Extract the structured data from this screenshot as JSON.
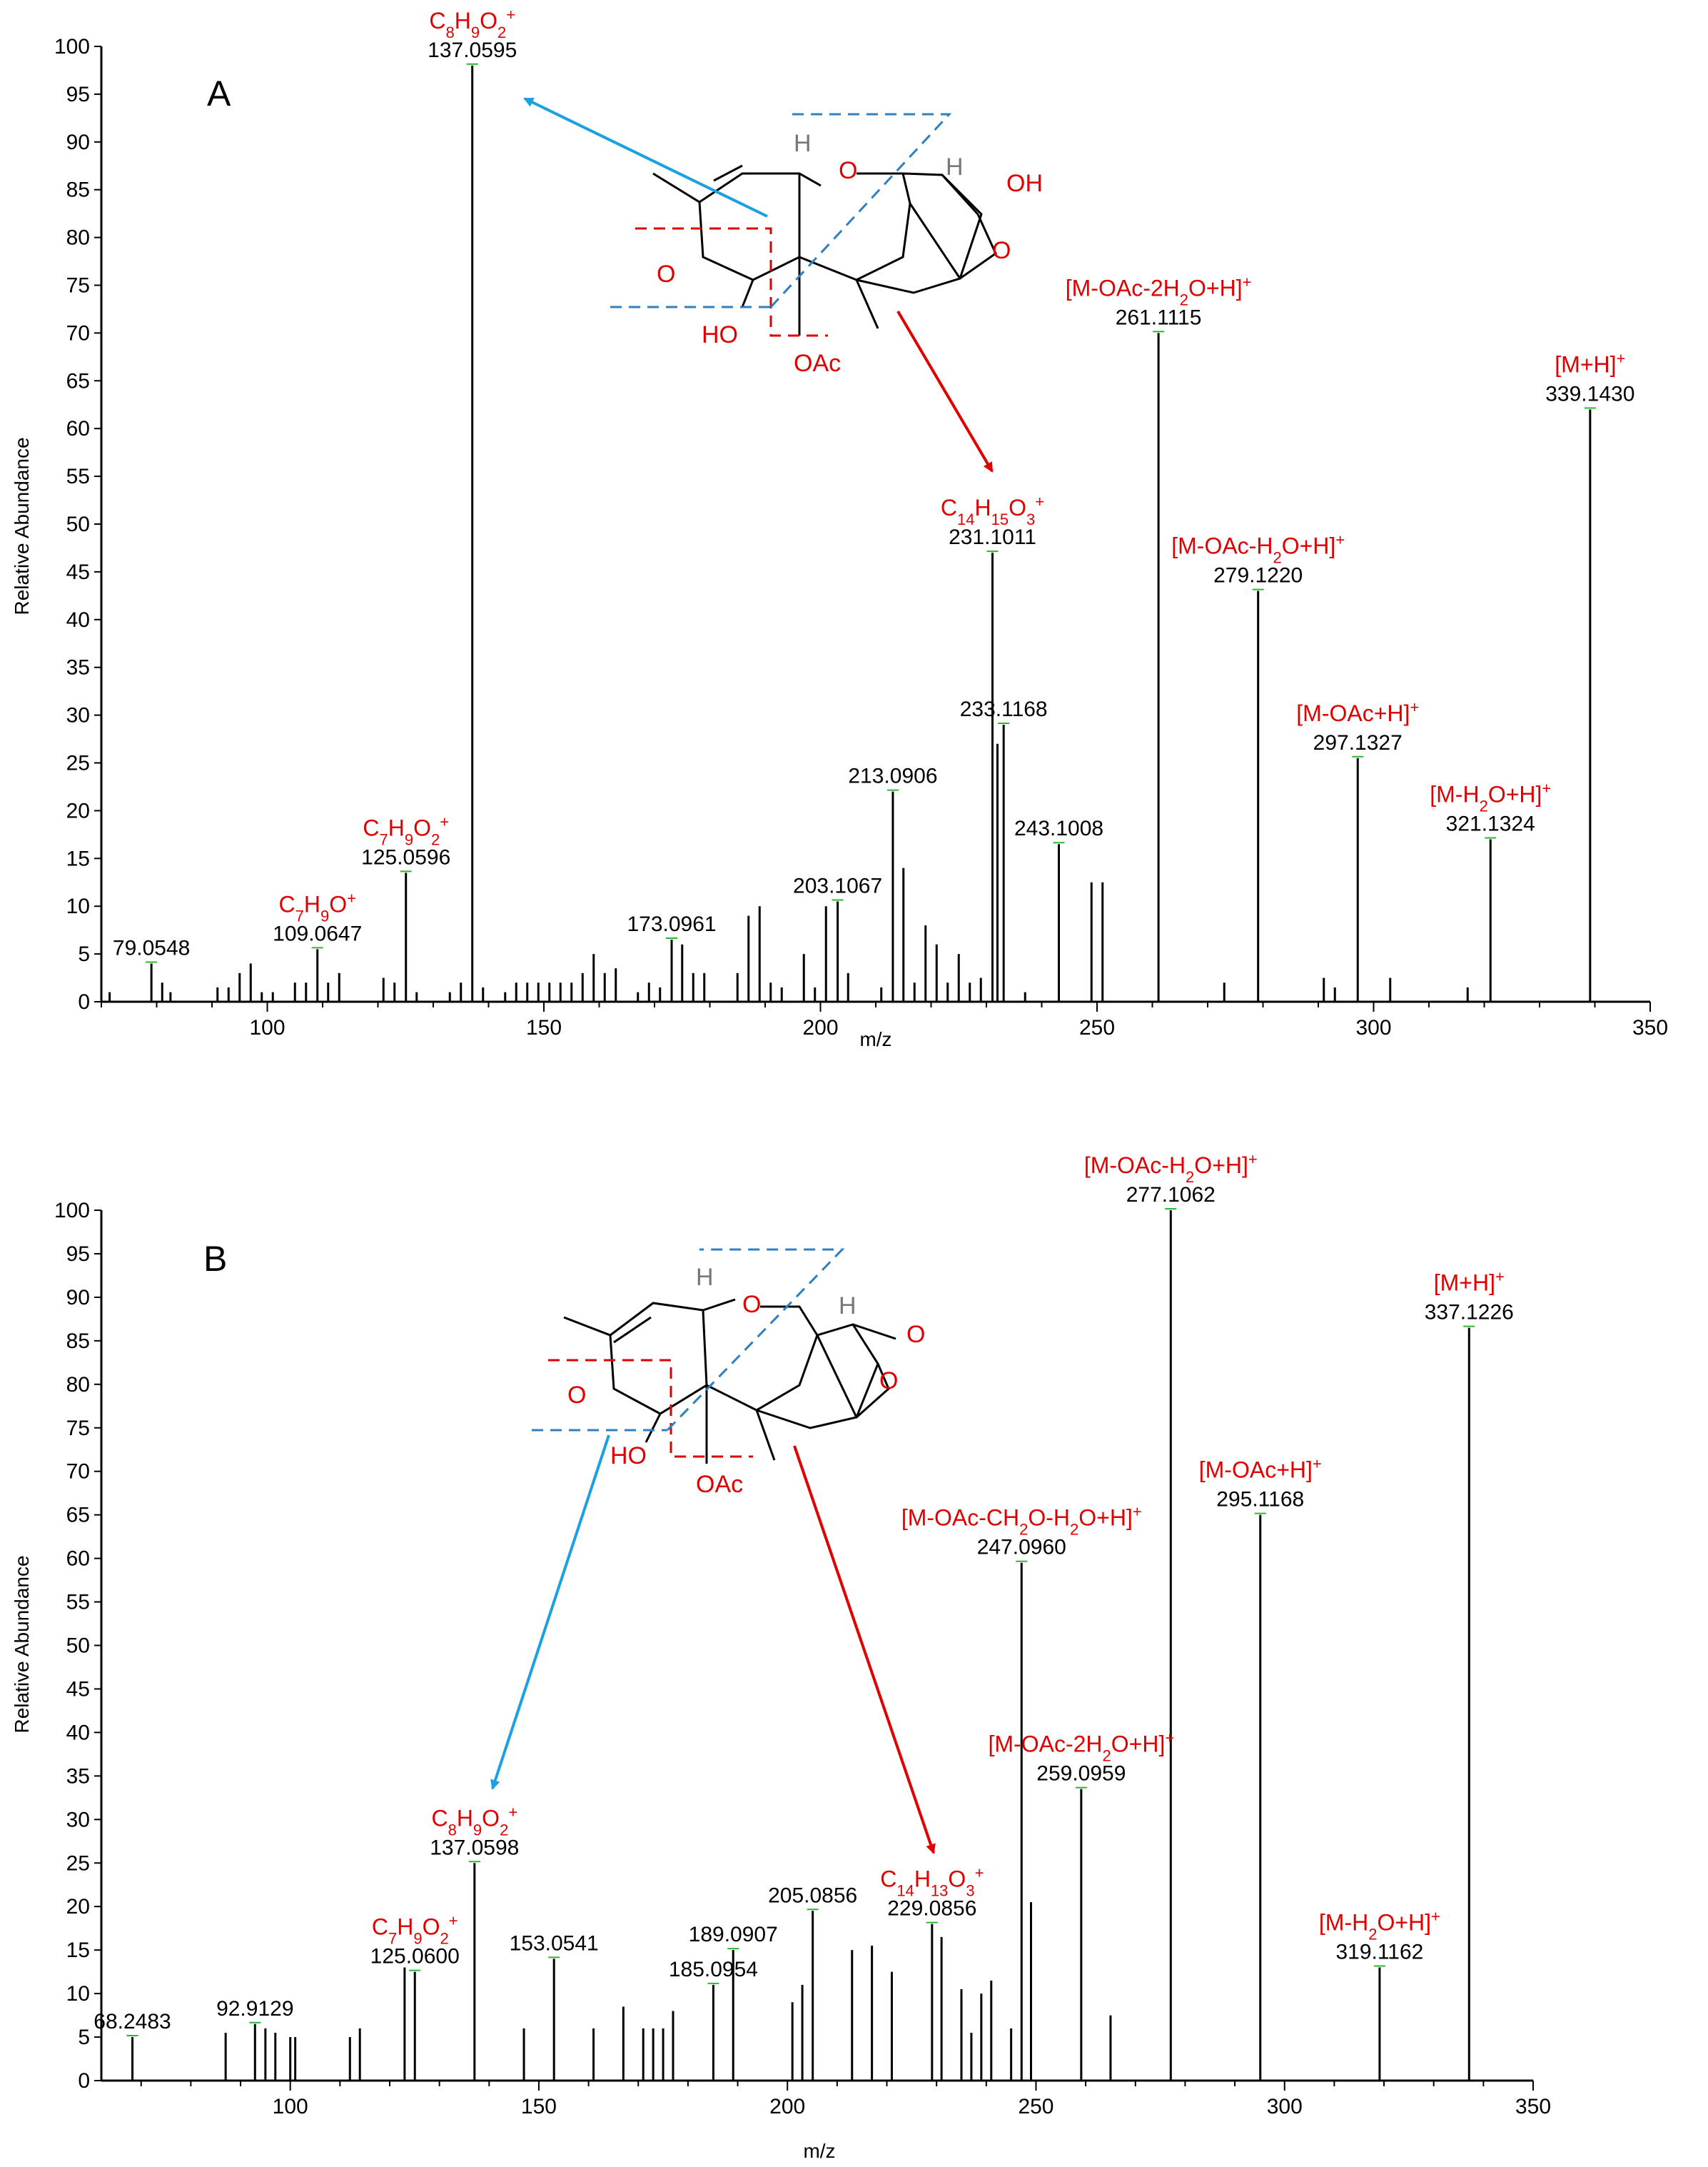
{
  "chart_data": [
    {
      "type": "bar",
      "panel_label": "A",
      "xlabel": "m/z",
      "ylabel": "Relative Abundance",
      "xlim": [
        70,
        350
      ],
      "ylim": [
        0,
        100
      ],
      "xticks": [
        "100",
        "150",
        "200",
        "250",
        "300",
        "350"
      ],
      "yticks": [
        "0",
        "5",
        "10",
        "15",
        "20",
        "25",
        "30",
        "35",
        "40",
        "45",
        "50",
        "55",
        "60",
        "65",
        "70",
        "75",
        "80",
        "85",
        "90",
        "95",
        "100"
      ],
      "peaks": [
        {
          "mz": 71.5,
          "ab": 1
        },
        {
          "mz": 79.05,
          "ab": 4
        },
        {
          "mz": 81,
          "ab": 2
        },
        {
          "mz": 82.5,
          "ab": 1
        },
        {
          "mz": 91,
          "ab": 1.5
        },
        {
          "mz": 93,
          "ab": 1.5
        },
        {
          "mz": 95,
          "ab": 3
        },
        {
          "mz": 97,
          "ab": 4
        },
        {
          "mz": 99,
          "ab": 1
        },
        {
          "mz": 101,
          "ab": 1
        },
        {
          "mz": 105,
          "ab": 2
        },
        {
          "mz": 107,
          "ab": 2
        },
        {
          "mz": 109.06,
          "ab": 5.5
        },
        {
          "mz": 111,
          "ab": 2
        },
        {
          "mz": 113,
          "ab": 3
        },
        {
          "mz": 121,
          "ab": 2.5
        },
        {
          "mz": 123,
          "ab": 2
        },
        {
          "mz": 125.06,
          "ab": 13.5
        },
        {
          "mz": 127,
          "ab": 1
        },
        {
          "mz": 133,
          "ab": 1
        },
        {
          "mz": 135,
          "ab": 2
        },
        {
          "mz": 137.06,
          "ab": 98
        },
        {
          "mz": 139,
          "ab": 1.5
        },
        {
          "mz": 143,
          "ab": 1
        },
        {
          "mz": 145,
          "ab": 2
        },
        {
          "mz": 147,
          "ab": 2
        },
        {
          "mz": 149,
          "ab": 2
        },
        {
          "mz": 151,
          "ab": 2
        },
        {
          "mz": 153,
          "ab": 2
        },
        {
          "mz": 155,
          "ab": 2
        },
        {
          "mz": 157,
          "ab": 3
        },
        {
          "mz": 159,
          "ab": 5
        },
        {
          "mz": 161,
          "ab": 3
        },
        {
          "mz": 163,
          "ab": 3.5
        },
        {
          "mz": 167,
          "ab": 1
        },
        {
          "mz": 169,
          "ab": 2
        },
        {
          "mz": 171,
          "ab": 1.5
        },
        {
          "mz": 173.1,
          "ab": 6.5
        },
        {
          "mz": 175,
          "ab": 6
        },
        {
          "mz": 177,
          "ab": 3
        },
        {
          "mz": 179,
          "ab": 3
        },
        {
          "mz": 185,
          "ab": 3
        },
        {
          "mz": 187,
          "ab": 9
        },
        {
          "mz": 189,
          "ab": 10
        },
        {
          "mz": 191,
          "ab": 2
        },
        {
          "mz": 193,
          "ab": 1.5
        },
        {
          "mz": 197,
          "ab": 5
        },
        {
          "mz": 199,
          "ab": 1.5
        },
        {
          "mz": 201,
          "ab": 10
        },
        {
          "mz": 203.11,
          "ab": 10.5
        },
        {
          "mz": 205,
          "ab": 3
        },
        {
          "mz": 211,
          "ab": 1.5
        },
        {
          "mz": 213.09,
          "ab": 22
        },
        {
          "mz": 215,
          "ab": 14
        },
        {
          "mz": 217,
          "ab": 2
        },
        {
          "mz": 219,
          "ab": 8
        },
        {
          "mz": 221,
          "ab": 6
        },
        {
          "mz": 223,
          "ab": 2
        },
        {
          "mz": 225,
          "ab": 5
        },
        {
          "mz": 227,
          "ab": 2
        },
        {
          "mz": 229,
          "ab": 2.5
        },
        {
          "mz": 231.1,
          "ab": 47
        },
        {
          "mz": 232,
          "ab": 27
        },
        {
          "mz": 233.12,
          "ab": 29
        },
        {
          "mz": 237,
          "ab": 1
        },
        {
          "mz": 243.1,
          "ab": 16.5
        },
        {
          "mz": 249,
          "ab": 12.5
        },
        {
          "mz": 251,
          "ab": 12.5
        },
        {
          "mz": 261.11,
          "ab": 70
        },
        {
          "mz": 273,
          "ab": 2
        },
        {
          "mz": 279.12,
          "ab": 43
        },
        {
          "mz": 291,
          "ab": 2.5
        },
        {
          "mz": 293,
          "ab": 1.5
        },
        {
          "mz": 297.13,
          "ab": 25.5
        },
        {
          "mz": 303,
          "ab": 2.5
        },
        {
          "mz": 317,
          "ab": 1.5
        },
        {
          "mz": 321.13,
          "ab": 17
        },
        {
          "mz": 339.14,
          "ab": 62
        }
      ],
      "labels": [
        {
          "mz": 79.05,
          "ab": 4,
          "text": "79.0548"
        },
        {
          "mz": 109.06,
          "ab": 5.5,
          "text": "109.0647",
          "formula": "C7H9O+"
        },
        {
          "mz": 125.06,
          "ab": 13.5,
          "text": "125.0596",
          "formula": "C7H9O2+"
        },
        {
          "mz": 137.06,
          "ab": 98,
          "text": "137.0595",
          "formula": "C8H9O2+"
        },
        {
          "mz": 173.1,
          "ab": 6.5,
          "text": "173.0961"
        },
        {
          "mz": 203.11,
          "ab": 10.5,
          "text": "203.1067"
        },
        {
          "mz": 213.09,
          "ab": 22,
          "text": "213.0906"
        },
        {
          "mz": 231.1,
          "ab": 47,
          "text": "231.1011",
          "formula": "C14H15O3+"
        },
        {
          "mz": 233.12,
          "ab": 29,
          "text": "233.1168"
        },
        {
          "mz": 243.1,
          "ab": 16.5,
          "text": "243.1008"
        },
        {
          "mz": 261.11,
          "ab": 70,
          "text": "261.1115",
          "formula": "[M-OAc-2H2O+H]+"
        },
        {
          "mz": 279.12,
          "ab": 43,
          "text": "279.1220",
          "formula": "[M-OAc-H2O+H]+"
        },
        {
          "mz": 297.13,
          "ab": 25.5,
          "text": "297.1327",
          "formula": "[M-OAc+H]+"
        },
        {
          "mz": 321.13,
          "ab": 17,
          "text": "321.1324",
          "formula": "[M-H2O+H]+"
        },
        {
          "mz": 339.14,
          "ab": 62,
          "text": "339.1430",
          "formula": "[M+H]+"
        }
      ],
      "structure_labels": [
        "H",
        "O",
        "H",
        "OH",
        "O",
        "O",
        "HO",
        "OAc"
      ]
    },
    {
      "type": "bar",
      "panel_label": "B",
      "xlabel": "m/z",
      "ylabel": "Relative Abundance",
      "xlim": [
        62,
        350
      ],
      "ylim": [
        0,
        100
      ],
      "xticks": [
        "100",
        "150",
        "200",
        "250",
        "300",
        "350"
      ],
      "yticks": [
        "0",
        "5",
        "10",
        "15",
        "20",
        "25",
        "30",
        "35",
        "40",
        "45",
        "50",
        "55",
        "60",
        "65",
        "70",
        "75",
        "80",
        "85",
        "90",
        "95",
        "100"
      ],
      "peaks": [
        {
          "mz": 68.25,
          "ab": 5
        },
        {
          "mz": 87,
          "ab": 5.5
        },
        {
          "mz": 92.91,
          "ab": 6.5
        },
        {
          "mz": 95,
          "ab": 6
        },
        {
          "mz": 97,
          "ab": 5.5
        },
        {
          "mz": 100,
          "ab": 5
        },
        {
          "mz": 101,
          "ab": 5
        },
        {
          "mz": 112,
          "ab": 5
        },
        {
          "mz": 114,
          "ab": 6
        },
        {
          "mz": 123,
          "ab": 13
        },
        {
          "mz": 125.06,
          "ab": 12.5
        },
        {
          "mz": 137.06,
          "ab": 25
        },
        {
          "mz": 147,
          "ab": 6
        },
        {
          "mz": 153.05,
          "ab": 14
        },
        {
          "mz": 161,
          "ab": 6
        },
        {
          "mz": 167,
          "ab": 8.5
        },
        {
          "mz": 171,
          "ab": 6
        },
        {
          "mz": 173,
          "ab": 6
        },
        {
          "mz": 175,
          "ab": 6
        },
        {
          "mz": 177,
          "ab": 8
        },
        {
          "mz": 185.1,
          "ab": 11
        },
        {
          "mz": 189.09,
          "ab": 15
        },
        {
          "mz": 201,
          "ab": 9
        },
        {
          "mz": 203,
          "ab": 11
        },
        {
          "mz": 205.09,
          "ab": 19.5
        },
        {
          "mz": 213,
          "ab": 15
        },
        {
          "mz": 217,
          "ab": 15.5
        },
        {
          "mz": 221,
          "ab": 12.5
        },
        {
          "mz": 229.09,
          "ab": 18
        },
        {
          "mz": 231,
          "ab": 16.5
        },
        {
          "mz": 235,
          "ab": 10.5
        },
        {
          "mz": 237,
          "ab": 5.5
        },
        {
          "mz": 239,
          "ab": 10
        },
        {
          "mz": 241,
          "ab": 11.5
        },
        {
          "mz": 245,
          "ab": 6
        },
        {
          "mz": 247.1,
          "ab": 59.5
        },
        {
          "mz": 249,
          "ab": 20.5
        },
        {
          "mz": 259.1,
          "ab": 33.5
        },
        {
          "mz": 265,
          "ab": 7.5
        },
        {
          "mz": 277.11,
          "ab": 100
        },
        {
          "mz": 295.12,
          "ab": 65
        },
        {
          "mz": 319.12,
          "ab": 13
        },
        {
          "mz": 337.12,
          "ab": 86.5
        }
      ],
      "labels": [
        {
          "mz": 68.25,
          "ab": 5,
          "text": "68.2483"
        },
        {
          "mz": 92.91,
          "ab": 6.5,
          "text": "92.9129"
        },
        {
          "mz": 125.06,
          "ab": 12.5,
          "text": "125.0600",
          "formula": "C7H9O2+"
        },
        {
          "mz": 137.06,
          "ab": 25,
          "text": "137.0598",
          "formula": "C8H9O2+"
        },
        {
          "mz": 153.05,
          "ab": 14,
          "text": "153.0541"
        },
        {
          "mz": 185.1,
          "ab": 11,
          "text": "185.0954"
        },
        {
          "mz": 189.09,
          "ab": 15,
          "text": "189.0907"
        },
        {
          "mz": 205.09,
          "ab": 19.5,
          "text": "205.0856"
        },
        {
          "mz": 229.09,
          "ab": 18,
          "text": "229.0856",
          "formula": "C14H13O3+"
        },
        {
          "mz": 247.1,
          "ab": 59.5,
          "text": "247.0960",
          "formula": "[M-OAc-CH2O-H2O+H]+"
        },
        {
          "mz": 259.1,
          "ab": 33.5,
          "text": "259.0959",
          "formula": "[M-OAc-2H2O+H]+"
        },
        {
          "mz": 277.11,
          "ab": 100,
          "text": "277.1062",
          "formula": "[M-OAc-H2O+H]+"
        },
        {
          "mz": 295.12,
          "ab": 65,
          "text": "295.1168",
          "formula": "[M-OAc+H]+"
        },
        {
          "mz": 319.12,
          "ab": 13,
          "text": "319.1162",
          "formula": "[M-H2O+H]+"
        },
        {
          "mz": 337.12,
          "ab": 86.5,
          "text": "337.1226",
          "formula": "[M+H]+"
        }
      ],
      "structure_labels": [
        "H",
        "O",
        "H",
        "O",
        "O",
        "O",
        "HO",
        "OAc"
      ]
    }
  ]
}
